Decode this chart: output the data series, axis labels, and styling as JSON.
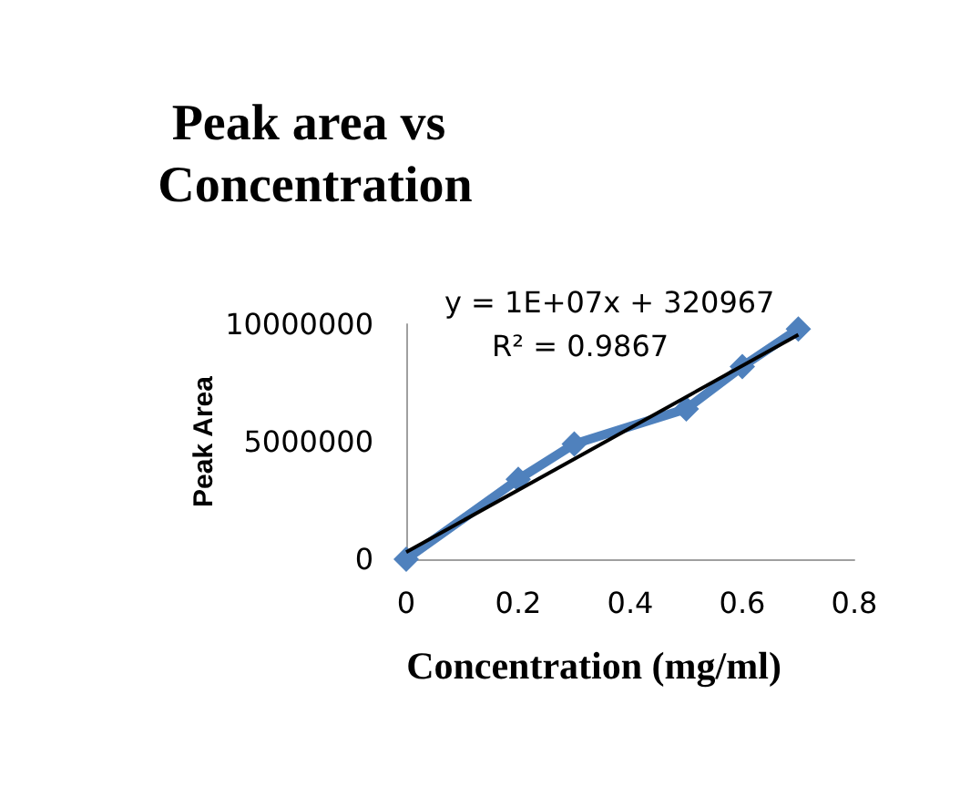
{
  "chart_data": {
    "type": "line",
    "title": "Peak area vs Concentration",
    "xlabel": "Concentration (mg/ml)",
    "ylabel": "Peak Area",
    "x": [
      0,
      0.2,
      0.3,
      0.5,
      0.6,
      0.7
    ],
    "series": [
      {
        "color": "#4f81bd",
        "values": [
          0,
          3400000,
          4900000,
          6400000,
          8200000,
          9800000
        ],
        "marker": "diamond"
      },
      {
        "type": "line",
        "color": "#000000",
        "x": [
          0,
          0.7
        ],
        "values": [
          300000,
          9550000
        ],
        "marker": "none"
      }
    ],
    "annotations": [
      "y = 1E+07x + 320967",
      "R² = 0.9867"
    ],
    "xlim": [
      0,
      0.8
    ],
    "xticks": [
      0,
      0.2,
      0.4,
      0.6,
      0.8
    ],
    "ylim": [
      0,
      10000000
    ],
    "yticks": [
      0,
      5000000,
      10000000
    ],
    "grid": false
  }
}
